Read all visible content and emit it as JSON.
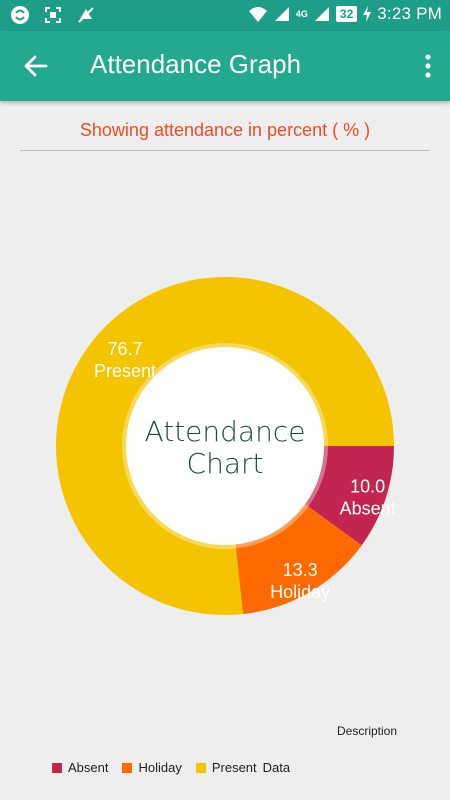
{
  "status_bar": {
    "time": "3:23 PM",
    "battery": "32",
    "icons": [
      "sync-icon",
      "screenshot-icon",
      "mute-icon",
      "wifi-icon",
      "signal-icon",
      "4g-icon",
      "signal-icon",
      "battery-icon",
      "charging-icon"
    ]
  },
  "app_bar": {
    "title": "Attendance Graph",
    "back_icon": "arrow-back-icon",
    "menu_icon": "more-vert-icon",
    "color": "#22a98e"
  },
  "subtitle": "Showing attendance in percent ( % )",
  "chart_data": {
    "type": "pie",
    "center_text": [
      "Attendance",
      "Chart"
    ],
    "series": [
      {
        "name": "Absent",
        "value": 10.0,
        "label": "10.0",
        "color": "#c2254f"
      },
      {
        "name": "Holiday",
        "value": 13.3,
        "label": "13.3",
        "color": "#ff6a00"
      },
      {
        "name": "Present",
        "value": 76.7,
        "label": "76.7",
        "color": "#f4c400"
      }
    ],
    "description": "Description",
    "legend": [
      "Absent",
      "Holiday",
      "Present",
      "Data"
    ],
    "legend_placement": "bottom-left"
  }
}
